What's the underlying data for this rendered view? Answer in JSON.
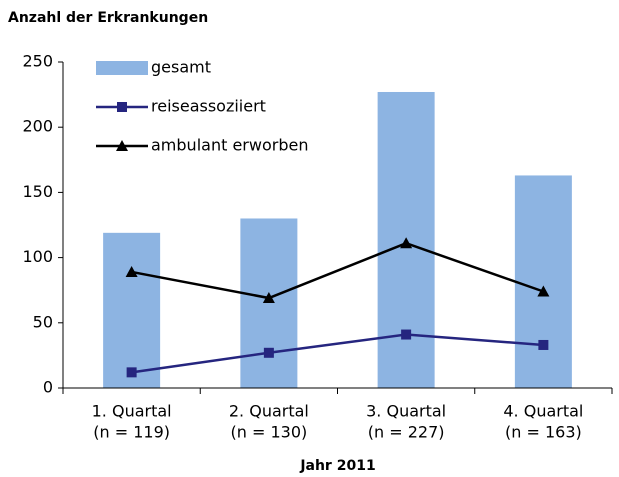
{
  "chart_data": {
    "type": "bar",
    "title": "Anzahl der Erkrankungen",
    "xlabel": "Jahr 2011",
    "categories": [
      [
        "1. Quartal",
        "(n = 119)"
      ],
      [
        "2. Quartal",
        "(n = 130)"
      ],
      [
        "3. Quartal",
        "(n = 227)"
      ],
      [
        "4. Quartal",
        "(n = 163)"
      ]
    ],
    "series": [
      {
        "name": "gesamt",
        "type": "bar",
        "color": "#8db4e2",
        "values": [
          119,
          130,
          227,
          163
        ]
      },
      {
        "name": "reiseassoziiert",
        "type": "line",
        "marker": "square",
        "color": "#25257f",
        "values": [
          12,
          27,
          41,
          33
        ]
      },
      {
        "name": "ambulant erworben",
        "type": "line",
        "marker": "triangle",
        "color": "#000000",
        "values": [
          89,
          69,
          111,
          74
        ]
      }
    ],
    "ylim": [
      0,
      250
    ],
    "yticks": [
      0,
      50,
      100,
      150,
      200,
      250
    ],
    "legend": "upper left",
    "grid": false
  }
}
